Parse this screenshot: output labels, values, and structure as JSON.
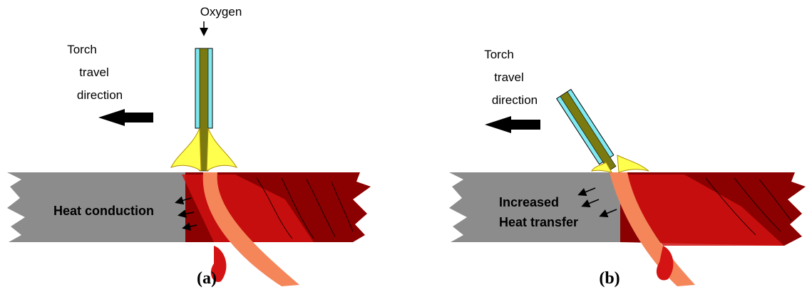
{
  "panels": [
    {
      "label": "(a)",
      "torch_label": [
        "Torch",
        "travel",
        "direction"
      ],
      "gas_label": "Oxygen",
      "heat_label": [
        "Heat conduction"
      ]
    },
    {
      "label": "(b)",
      "torch_label": [
        "Torch",
        "travel",
        "direction"
      ],
      "heat_label": [
        "Increased",
        "Heat transfer"
      ]
    }
  ]
}
